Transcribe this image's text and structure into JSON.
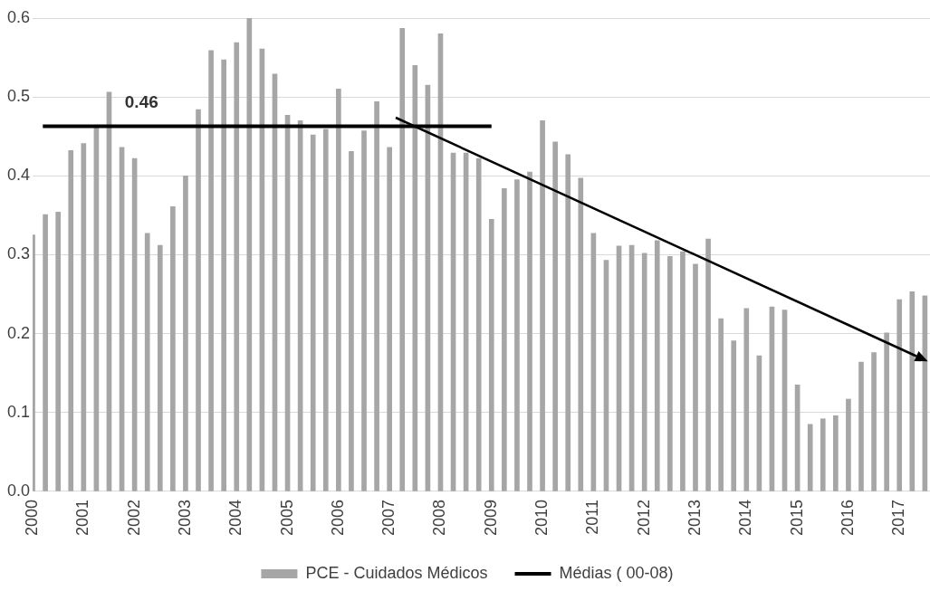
{
  "chart_data": {
    "type": "bar",
    "x": [
      2000,
      2000.25,
      2000.5,
      2000.75,
      2001,
      2001.25,
      2001.5,
      2001.75,
      2002,
      2002.25,
      2002.5,
      2002.75,
      2003,
      2003.25,
      2003.5,
      2003.75,
      2004,
      2004.25,
      2004.5,
      2004.75,
      2005,
      2005.25,
      2005.5,
      2005.75,
      2006,
      2006.25,
      2006.5,
      2006.75,
      2007,
      2007.25,
      2007.5,
      2007.75,
      2008,
      2008.25,
      2008.5,
      2008.75,
      2009,
      2009.25,
      2009.5,
      2009.75,
      2010,
      2010.25,
      2010.5,
      2010.75,
      2011,
      2011.25,
      2011.5,
      2011.75,
      2012,
      2012.25,
      2012.5,
      2012.75,
      2013,
      2013.25,
      2013.5,
      2013.75,
      2014,
      2014.25,
      2014.5,
      2014.75,
      2015,
      2015.25,
      2015.5,
      2015.75,
      2016,
      2016.25,
      2016.5,
      2016.75,
      2017,
      2017.25,
      2017.5
    ],
    "series": [
      {
        "name": "PCE - Cuidados Médicos",
        "color": "#a6a6a6",
        "values": [
          0.325,
          0.351,
          0.354,
          0.432,
          0.441,
          0.462,
          0.506,
          0.436,
          0.422,
          0.327,
          0.312,
          0.361,
          0.4,
          0.484,
          0.559,
          0.547,
          0.569,
          0.6,
          0.561,
          0.529,
          0.477,
          0.47,
          0.452,
          0.459,
          0.51,
          0.431,
          0.457,
          0.494,
          0.436,
          0.587,
          0.54,
          0.515,
          0.58,
          0.429,
          0.429,
          0.422,
          0.345,
          0.384,
          0.395,
          0.405,
          0.47,
          0.443,
          0.427,
          0.397,
          0.327,
          0.293,
          0.311,
          0.312,
          0.302,
          0.318,
          0.298,
          0.304,
          0.288,
          0.32,
          0.219,
          0.191,
          0.232,
          0.172,
          0.234,
          0.23,
          0.135,
          0.085,
          0.092,
          0.096,
          0.117,
          0.164,
          0.176,
          0.201,
          0.243,
          0.253,
          0.248
        ]
      },
      {
        "name": "Médias ( 00-08)",
        "type": "line",
        "color": "#000000",
        "x": [
          2000.2,
          2009
        ],
        "values": [
          0.463,
          0.463
        ]
      }
    ],
    "xlim": [
      2000,
      2017.6
    ],
    "xticks": [
      2000,
      2001,
      2002,
      2003,
      2004,
      2005,
      2006,
      2007,
      2008,
      2009,
      2010,
      2011,
      2012,
      2013,
      2014,
      2015,
      2016,
      2017
    ],
    "ylim": [
      0,
      0.6
    ],
    "yticks": [
      {
        "value": 0,
        "label": "0.0"
      },
      {
        "value": 0.1,
        "label": "0.1"
      },
      {
        "value": 0.2,
        "label": "0.2"
      },
      {
        "value": 0.3,
        "label": "0.3"
      },
      {
        "value": 0.4,
        "label": "0.4"
      },
      {
        "value": 0.5,
        "label": "0.5"
      },
      {
        "value": 0.6,
        "label": "0.6"
      }
    ],
    "annotations": [
      "0.46"
    ],
    "grid": "y",
    "legend": "bottom",
    "marker": "none",
    "line_style": "solid"
  }
}
